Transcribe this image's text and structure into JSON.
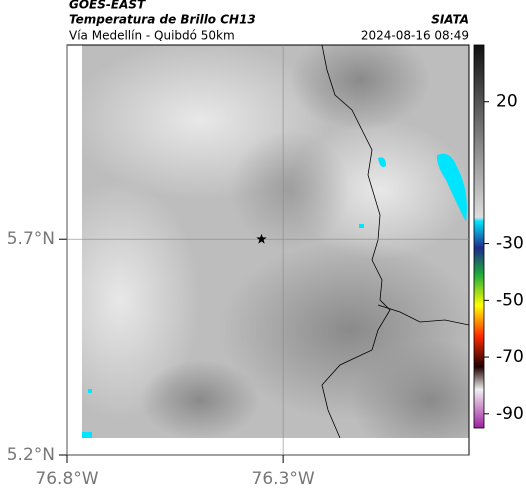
{
  "header": {
    "satellite": "GOES-EAST",
    "product": "Temperatura de Brillo CH13",
    "agency": "SIATA",
    "region": "Vía Medellín - Quibdó 50km",
    "timestamp": "2024-08-16 08:49"
  },
  "map": {
    "xlim": [
      -76.8,
      -75.87
    ],
    "ylim": [
      5.2,
      6.15
    ],
    "xticks": [
      {
        "value": -76.8,
        "label": "76.8°W"
      },
      {
        "value": -76.3,
        "label": "76.3°W"
      }
    ],
    "yticks": [
      {
        "value": 5.7,
        "label": "5.7°N"
      },
      {
        "value": 5.2,
        "label": "5.2°N"
      }
    ],
    "grid": true,
    "marker": {
      "lon": -76.35,
      "lat": 5.7
    }
  },
  "colorbar": {
    "lim": [
      40,
      -95
    ],
    "ticks": [
      20,
      -30,
      -50,
      -70,
      -90
    ]
  }
}
